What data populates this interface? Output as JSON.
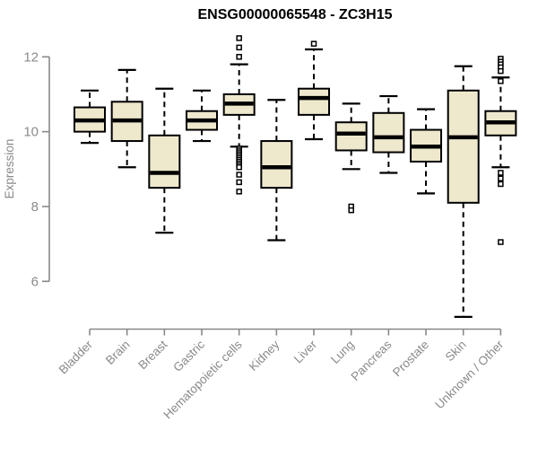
{
  "figure": {
    "title": "ENSG00000065548 - ZC3H15",
    "y_axis_label": "Expression"
  },
  "colors": {
    "background": "#ffffff",
    "box_fill": "#EEE8CD",
    "box_stroke": "#000000",
    "median": "#000000",
    "whisker": "#000000",
    "outlier_fill": "#ffffff",
    "axis": "#888888",
    "tick_label": "#8a8a8a",
    "title": "#000000"
  },
  "chart_data": {
    "type": "boxplot",
    "title": "ENSG00000065548 - ZC3H15",
    "xlabel": "",
    "ylabel": "Expression",
    "yticks": [
      6,
      8,
      10,
      12
    ],
    "ylim": [
      4.6,
      12.7
    ],
    "grid": false,
    "legend": "none",
    "categories": [
      "Bladder",
      "Brain",
      "Breast",
      "Gastric",
      "Hematopoietic cells",
      "Kidney",
      "Liver",
      "Lung",
      "Pancreas",
      "Prostate",
      "Skin",
      "Unknown / Other"
    ],
    "series": [
      {
        "name": "Bladder",
        "whisker_low": 9.7,
        "q1": 10.0,
        "median": 10.3,
        "q3": 10.65,
        "whisker_high": 11.1,
        "outliers": []
      },
      {
        "name": "Brain",
        "whisker_low": 9.05,
        "q1": 9.75,
        "median": 10.3,
        "q3": 10.8,
        "whisker_high": 11.65,
        "outliers": []
      },
      {
        "name": "Breast",
        "whisker_low": 7.3,
        "q1": 8.5,
        "median": 8.9,
        "q3": 9.9,
        "whisker_high": 11.15,
        "outliers": []
      },
      {
        "name": "Gastric",
        "whisker_low": 9.75,
        "q1": 10.05,
        "median": 10.3,
        "q3": 10.55,
        "whisker_high": 11.1,
        "outliers": []
      },
      {
        "name": "Hematopoietic cells",
        "whisker_low": 9.6,
        "q1": 10.45,
        "median": 10.75,
        "q3": 11.0,
        "whisker_high": 11.8,
        "outliers": [
          12.5,
          12.25,
          12.0,
          9.55,
          9.5,
          9.45,
          9.4,
          9.35,
          9.3,
          9.25,
          9.2,
          9.15,
          9.1,
          9.05,
          8.85,
          8.65,
          8.4
        ]
      },
      {
        "name": "Kidney",
        "whisker_low": 7.1,
        "q1": 8.5,
        "median": 9.05,
        "q3": 9.75,
        "whisker_high": 10.85,
        "outliers": []
      },
      {
        "name": "Liver",
        "whisker_low": 9.8,
        "q1": 10.45,
        "median": 10.9,
        "q3": 11.15,
        "whisker_high": 12.2,
        "outliers": [
          12.35
        ]
      },
      {
        "name": "Lung",
        "whisker_low": 9.0,
        "q1": 9.5,
        "median": 9.95,
        "q3": 10.25,
        "whisker_high": 10.75,
        "outliers": [
          8.0,
          7.9
        ]
      },
      {
        "name": "Pancreas",
        "whisker_low": 8.9,
        "q1": 9.45,
        "median": 9.85,
        "q3": 10.5,
        "whisker_high": 10.95,
        "outliers": []
      },
      {
        "name": "Prostate",
        "whisker_low": 8.35,
        "q1": 9.2,
        "median": 9.6,
        "q3": 10.05,
        "whisker_high": 10.6,
        "outliers": []
      },
      {
        "name": "Skin",
        "whisker_low": 5.05,
        "q1": 8.1,
        "median": 9.85,
        "q3": 11.1,
        "whisker_high": 11.75,
        "outliers": []
      },
      {
        "name": "Unknown / Other",
        "whisker_low": 9.05,
        "q1": 9.9,
        "median": 10.25,
        "q3": 10.55,
        "whisker_high": 11.45,
        "outliers": [
          11.95,
          11.87,
          11.8,
          11.72,
          11.62,
          11.35,
          8.9,
          8.75,
          8.6,
          7.05
        ]
      }
    ]
  }
}
